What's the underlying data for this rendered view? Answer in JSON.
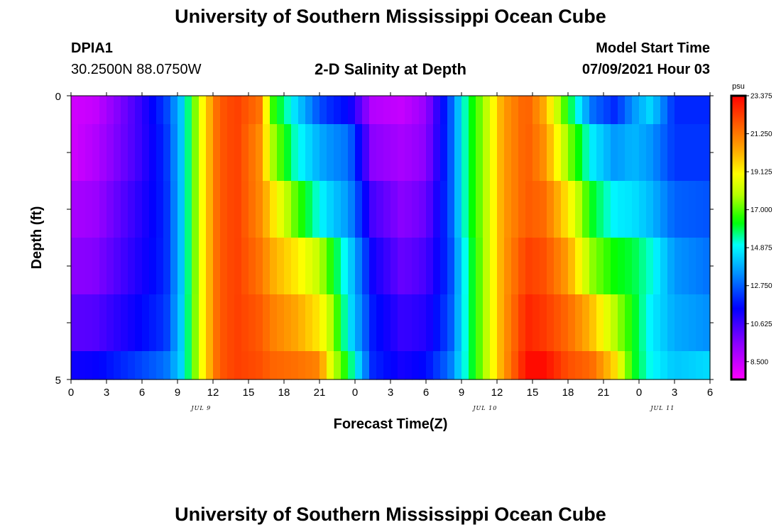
{
  "header": {
    "title_top": "University of Southern Mississippi Ocean Cube",
    "title_bottom": "University of Southern Mississippi Ocean Cube",
    "station_id": "DPIA1",
    "station_coords": "30.2500N  88.0750W",
    "chart_title": "2-D Salinity at Depth",
    "model_start_label": "Model Start Time",
    "model_start_value": "07/09/2021 Hour 03"
  },
  "chart_data": {
    "type": "heatmap",
    "title": "2-D Salinity at Depth",
    "xlabel": "Forecast Time(Z)",
    "ylabel": "Depth (ft)",
    "x_tick_labels": [
      "0",
      "3",
      "6",
      "9",
      "12",
      "15",
      "18",
      "21",
      "0",
      "3",
      "6",
      "9",
      "12",
      "15",
      "18",
      "21",
      "0",
      "3",
      "6"
    ],
    "x_date_labels": [
      {
        "text": "JUL 9",
        "hour": 11
      },
      {
        "text": "JUL 10",
        "hour": 35
      },
      {
        "text": "JUL 11",
        "hour": 50
      }
    ],
    "y_tick_labels": [
      "0",
      "5"
    ],
    "ylim": [
      0,
      5
    ],
    "x_hours": 54,
    "depth_levels": [
      0,
      1,
      2,
      3,
      4,
      5
    ],
    "colorbar": {
      "unit": "psu",
      "min": 7.5,
      "max": 23.375,
      "tick_labels": [
        "23.375",
        "21.250",
        "19.125",
        "17.000",
        "14.875",
        "12.750",
        "10.625",
        "8.500"
      ]
    },
    "salinity_keyframes": [
      {
        "hour": 0,
        "values": [
          8.3,
          8.3,
          9.0,
          9.5,
          10.2,
          11.3
        ]
      },
      {
        "hour": 2,
        "values": [
          8.5,
          8.8,
          9.2,
          9.6,
          10.3,
          11.4
        ]
      },
      {
        "hour": 5.5,
        "values": [
          10.5,
          10.5,
          10.8,
          11.0,
          11.4,
          12.3
        ]
      },
      {
        "hour": 8,
        "values": [
          12.3,
          12.1,
          12.0,
          12.0,
          12.2,
          13.0
        ]
      },
      {
        "hour": 9.5,
        "values": [
          14.5,
          14.5,
          14.5,
          14.5,
          14.6,
          14.6
        ]
      },
      {
        "hour": 11,
        "values": [
          18.8,
          18.8,
          18.8,
          18.8,
          18.8,
          18.8
        ]
      },
      {
        "hour": 12.5,
        "values": [
          21.8,
          21.8,
          21.8,
          21.8,
          21.8,
          21.8
        ]
      },
      {
        "hour": 14,
        "values": [
          22.3,
          22.3,
          22.3,
          22.3,
          22.3,
          22.3
        ]
      },
      {
        "hour": 16,
        "values": [
          21.3,
          20.8,
          20.9,
          21.3,
          21.8,
          22.0
        ]
      },
      {
        "hour": 17,
        "values": [
          16.8,
          17.8,
          19.5,
          20.3,
          21.1,
          21.6
        ]
      },
      {
        "hour": 19,
        "values": [
          14.5,
          15.2,
          17.0,
          19.3,
          20.4,
          21.4
        ]
      },
      {
        "hour": 21,
        "values": [
          12.5,
          13.8,
          15.0,
          18.0,
          19.3,
          21.0
        ]
      },
      {
        "hour": 22,
        "values": [
          12.0,
          13.4,
          14.3,
          16.5,
          17.8,
          18.4
        ]
      },
      {
        "hour": 23.5,
        "values": [
          11.5,
          13.0,
          13.5,
          14.5,
          14.7,
          16.0
        ]
      },
      {
        "hour": 25.5,
        "values": [
          8.8,
          9.5,
          10.5,
          11.3,
          11.8,
          12.0
        ]
      },
      {
        "hour": 28,
        "values": [
          8.5,
          9.0,
          9.5,
          10.0,
          10.7,
          11.2
        ]
      },
      {
        "hour": 30,
        "values": [
          9.3,
          9.5,
          10.0,
          10.5,
          11.0,
          11.6
        ]
      },
      {
        "hour": 32,
        "values": [
          12.5,
          12.5,
          12.5,
          12.3,
          12.5,
          13.0
        ]
      },
      {
        "hour": 33.5,
        "values": [
          15.8,
          15.8,
          15.8,
          15.5,
          15.5,
          15.5
        ]
      },
      {
        "hour": 35,
        "values": [
          17.8,
          17.8,
          17.8,
          17.8,
          17.8,
          17.8
        ]
      },
      {
        "hour": 36.5,
        "values": [
          20.5,
          20.5,
          20.5,
          20.5,
          20.5,
          20.5
        ]
      },
      {
        "hour": 38.5,
        "values": [
          21.8,
          21.8,
          21.8,
          22.3,
          22.8,
          23.2
        ]
      },
      {
        "hour": 40,
        "values": [
          20.3,
          20.8,
          21.5,
          22.0,
          22.4,
          23.2
        ]
      },
      {
        "hour": 42,
        "values": [
          16.3,
          17.5,
          19.3,
          20.5,
          21.5,
          22.0
        ]
      },
      {
        "hour": 44,
        "values": [
          13.0,
          14.8,
          16.2,
          17.5,
          20.0,
          21.5
        ]
      },
      {
        "hour": 46,
        "values": [
          12.0,
          13.5,
          14.8,
          16.3,
          17.8,
          19.5
        ]
      },
      {
        "hour": 47.5,
        "values": [
          13.5,
          14.0,
          14.6,
          16.0,
          16.3,
          16.3
        ]
      },
      {
        "hour": 49,
        "values": [
          14.5,
          13.5,
          14.0,
          15.2,
          14.8,
          15.0
        ]
      },
      {
        "hour": 51,
        "values": [
          12.0,
          12.2,
          12.8,
          13.5,
          13.8,
          14.2
        ]
      },
      {
        "hour": 54,
        "values": [
          12.0,
          12.2,
          12.6,
          13.0,
          13.4,
          14.5
        ]
      }
    ]
  }
}
